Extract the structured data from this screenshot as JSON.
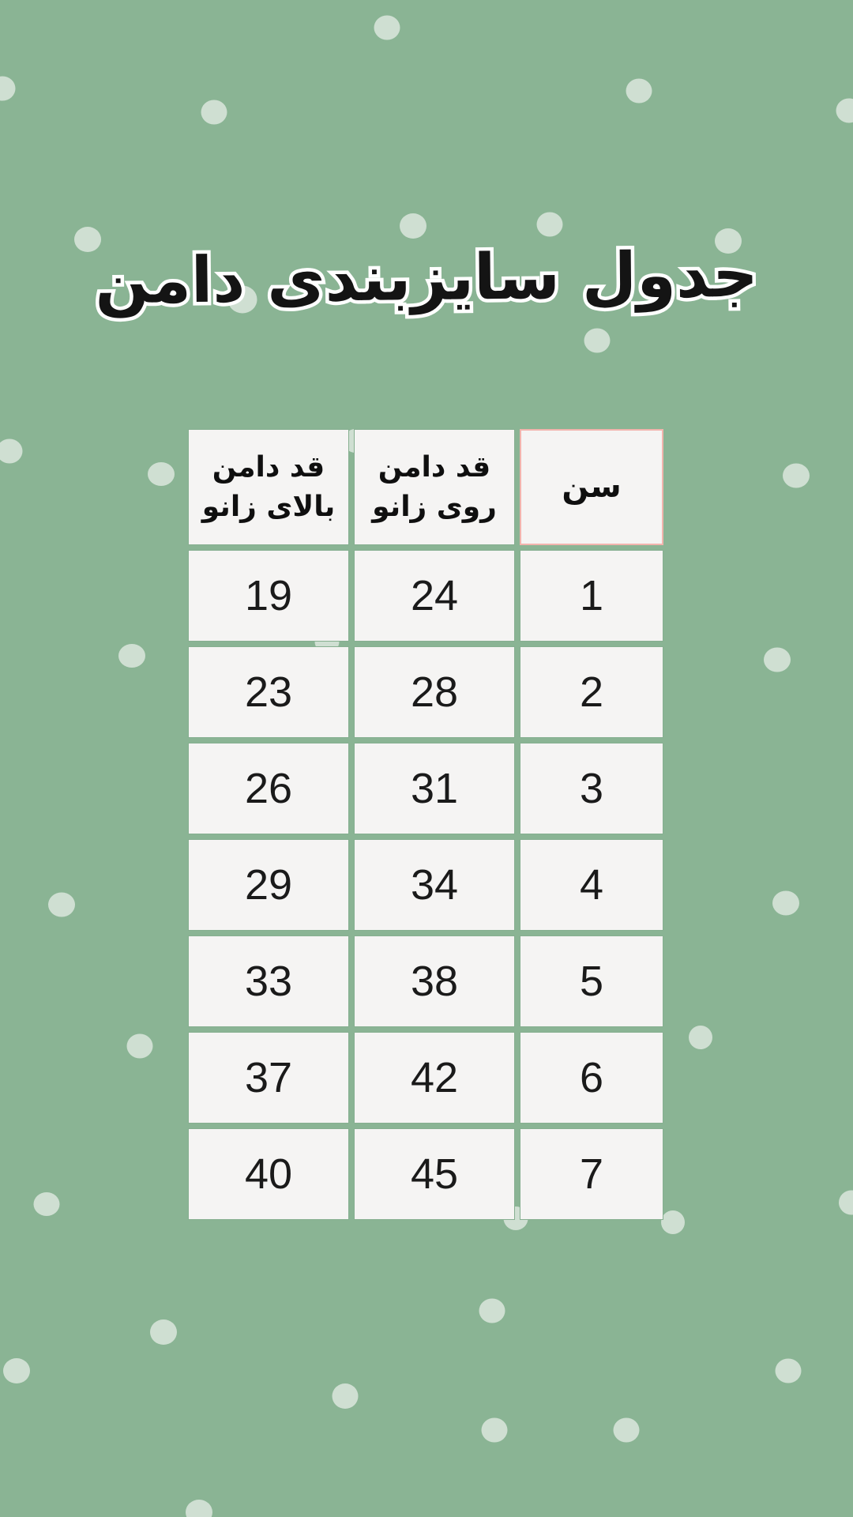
{
  "page": {
    "background_color": "#8ab494",
    "dot_color": "#cfdfd2",
    "title": "جدول سایزبندی دامن",
    "title_color": "#141414",
    "title_outline_color": "#ffffff"
  },
  "size_table": {
    "accent_border_color": "#f2b4ad",
    "cell_background": "#f5f4f3",
    "columns": [
      {
        "key": "age",
        "label": "سن"
      },
      {
        "key": "on_knee",
        "label": "قد دامن\nروی زانو"
      },
      {
        "key": "above_knee",
        "label": "قد دامن\nبالای زانو"
      }
    ],
    "rows": [
      {
        "age": "1",
        "on_knee": "24",
        "above_knee": "19"
      },
      {
        "age": "2",
        "on_knee": "28",
        "above_knee": "23"
      },
      {
        "age": "3",
        "on_knee": "31",
        "above_knee": "26"
      },
      {
        "age": "4",
        "on_knee": "34",
        "above_knee": "29"
      },
      {
        "age": "5",
        "on_knee": "38",
        "above_knee": "33"
      },
      {
        "age": "6",
        "on_knee": "42",
        "above_knee": "37"
      },
      {
        "age": "7",
        "on_knee": "45",
        "above_knee": "40"
      }
    ]
  }
}
